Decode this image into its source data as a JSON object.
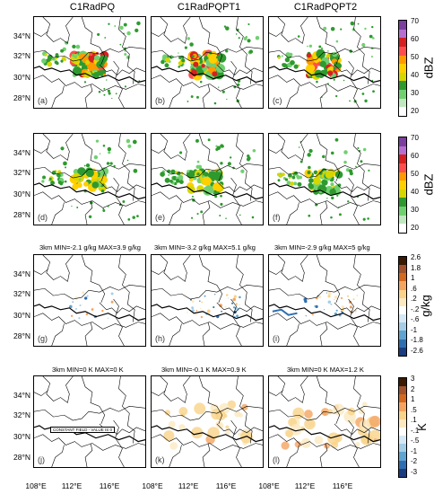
{
  "columns": [
    "C1RadPQ",
    "C1RadPQPT1",
    "C1RadPQPT2"
  ],
  "lat_labels": [
    "34°N",
    "32°N",
    "30°N",
    "28°N"
  ],
  "lon_labels": [
    "108°E",
    "112°E",
    "116°E"
  ],
  "rows": [
    {
      "panels": [
        "(a)",
        "(b)",
        "(c)"
      ],
      "headers": [
        "",
        "",
        ""
      ],
      "field": "dbz"
    },
    {
      "panels": [
        "(d)",
        "(e)",
        "(f)"
      ],
      "headers": [
        "",
        "",
        ""
      ],
      "field": "dbz"
    },
    {
      "panels": [
        "(g)",
        "(h)",
        "(i)"
      ],
      "headers": [
        "3km MIN=-2.1 g/kg  MAX=3.9 g/kg",
        "3km MIN=-3.2 g/kg  MAX=5.1 g/kg",
        "3km MIN=-2.9 g/kg  MAX=5 g/kg"
      ],
      "field": "q"
    },
    {
      "panels": [
        "(j)",
        "(k)",
        "(l)"
      ],
      "headers": [
        "3km MIN=0 K  MAX=0 K",
        "3km MIN=-0.1 K  MAX=0.9 K",
        "3km MIN=0 K  MAX=1.2 K"
      ],
      "field": "t"
    }
  ],
  "constant_field_label": "CONSTANT FIELD - VALUE IS 0",
  "colorbars": {
    "dbz": {
      "unit": "dBZ",
      "ticks": [
        "70",
        "60",
        "50",
        "40",
        "30",
        "20"
      ],
      "colors": [
        "#7b3fa0",
        "#b66fd0",
        "#d62020",
        "#ff4d4d",
        "#ff9a00",
        "#ffd000",
        "#d6d600",
        "#2e9a2e",
        "#70d070",
        "#bfe8bf",
        "#ffffff"
      ]
    },
    "q": {
      "unit": "g/kg",
      "ticks": [
        "2.6",
        "1.8",
        "1",
        ".6",
        ".2",
        "-.2",
        "-.6",
        "-1",
        "-1.8",
        "-2.6"
      ],
      "colors": [
        "#3a1a00",
        "#a0522d",
        "#d2691e",
        "#f4a460",
        "#f9d38a",
        "#fbe9c0",
        "#ffffff",
        "#d6e8f5",
        "#a6cde6",
        "#5fa3d0",
        "#2e6eb0",
        "#1a3c80"
      ]
    },
    "t": {
      "unit": "K",
      "ticks": [
        "3",
        "2",
        "1",
        ".5",
        ".1",
        "-.1",
        "-.5",
        "-1",
        "-2",
        "-3"
      ],
      "colors": [
        "#3a1a00",
        "#a0522d",
        "#d2691e",
        "#f4a460",
        "#f9d38a",
        "#fbe9c0",
        "#ffffff",
        "#d6e8f5",
        "#a6cde6",
        "#5fa3d0",
        "#2e6eb0",
        "#1a3c80"
      ]
    }
  }
}
